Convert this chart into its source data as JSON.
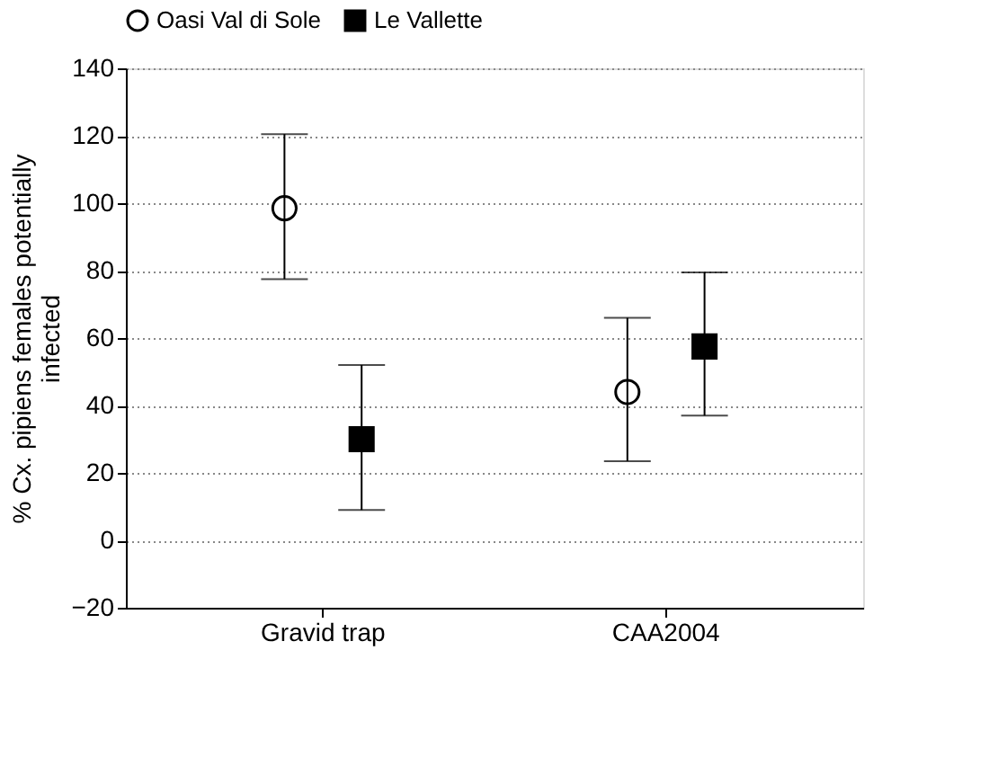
{
  "chart_data": {
    "type": "scatter",
    "ylabel": "% Cx. pipiens females potentially infected",
    "categories": [
      "Gravid trap",
      "CAA2004"
    ],
    "series": [
      {
        "name": "Oasi Val di Sole",
        "color": "#000000",
        "marker": "circle",
        "values": [
          98.5,
          44
        ],
        "errors": [
          [
            77.5,
            120.5
          ],
          [
            23.5,
            66
          ]
        ]
      },
      {
        "name": "Le Vallette",
        "color": "#000000",
        "marker": "square",
        "values": [
          30,
          57.5
        ],
        "errors": [
          [
            9,
            52
          ],
          [
            37,
            79.5
          ]
        ]
      }
    ],
    "ylim": [
      -20,
      140
    ],
    "yticks": [
      -20,
      0,
      20,
      40,
      60,
      80,
      100,
      120,
      140
    ],
    "grid": "y",
    "legend": "top"
  }
}
